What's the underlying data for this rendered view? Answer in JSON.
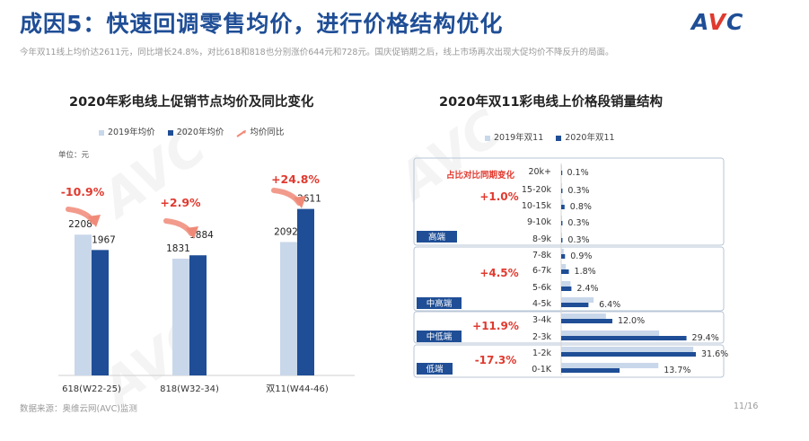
{
  "header": {
    "title": "成因5：快速回调零售均价，进行价格结构优化",
    "subtitle": "今年双11线上均价达2611元，同比增长24.8%，对比618和818也分别涨价644元和728元。国庆促销期之后，线上市场再次出现大促均价不降反升的局面。",
    "logo_a": "A",
    "logo_v": "V",
    "logo_c": "C"
  },
  "footer": {
    "source": "数据来源：奥维云网(AVC)监测",
    "page": "11/16"
  },
  "chart_data": [
    {
      "type": "bar",
      "title": "2020年彩电线上促销节点均价及同比变化",
      "unit": "单位：元",
      "legend": [
        "2019年均价",
        "2020年均价",
        "均价同比"
      ],
      "categories": [
        "618(W22-25)",
        "818(W32-34)",
        "双11(W44-46)"
      ],
      "series": [
        {
          "name": "2019年均价",
          "values": [
            2208,
            1831,
            2092
          ],
          "color": "#c9d7ea"
        },
        {
          "name": "2020年均价",
          "values": [
            1967,
            1884,
            2611
          ],
          "color": "#1f4e96"
        }
      ],
      "yoy": [
        "-10.9%",
        "+2.9%",
        "+24.8%"
      ],
      "ylim": [
        0,
        3000
      ]
    },
    {
      "type": "bar",
      "orientation": "horizontal",
      "title": "2020年双11彩电线上价格段销量结构",
      "legend": [
        "2019年双11",
        "2020年双11"
      ],
      "categories": [
        "20k+",
        "15-20k",
        "10-15k",
        "9-10k",
        "8-9k",
        "7-8k",
        "6-7k",
        "5-6k",
        "4-5k",
        "3-4k",
        "2-3k",
        "1-2k",
        "0-1K"
      ],
      "series": [
        {
          "name": "2019年双11",
          "values": [
            0.1,
            0.2,
            0.5,
            0.2,
            0.2,
            0.6,
            1.1,
            2.2,
            7.6,
            10.5,
            23.0,
            31.0,
            22.8
          ],
          "color": "#c9d7ea"
        },
        {
          "name": "2020年双11",
          "values": [
            0.1,
            0.3,
            0.8,
            0.3,
            0.3,
            0.9,
            1.8,
            2.4,
            6.4,
            12.0,
            29.4,
            31.6,
            13.7
          ],
          "color": "#1f4e96"
        }
      ],
      "labels_2020": [
        "0.1%",
        "0.3%",
        "0.8%",
        "0.3%",
        "0.3%",
        "0.9%",
        "1.8%",
        "2.4%",
        "6.4%",
        "12.0%",
        "29.4%",
        "31.6%",
        "13.7%"
      ],
      "segment_header": "占比对比同期变化",
      "segments": [
        {
          "name": "高端",
          "change": "+1.0%"
        },
        {
          "name": "中高端",
          "change": "+4.5%"
        },
        {
          "name": "中低端",
          "change": "+11.9%"
        },
        {
          "name": "低端",
          "change": "-17.3%"
        }
      ]
    }
  ]
}
